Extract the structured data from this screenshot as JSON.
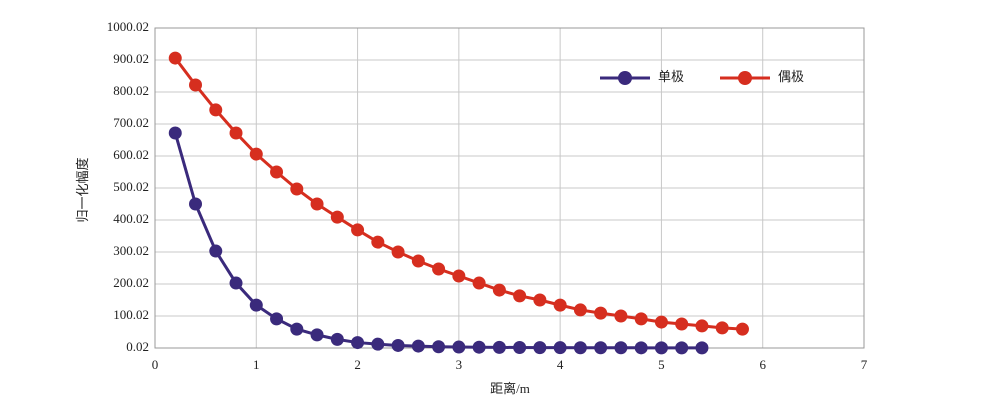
{
  "chart_data": {
    "type": "line",
    "x_label": "距离/m",
    "y_label": "归一化幅度",
    "xlim": [
      0,
      7
    ],
    "xticks": [
      0,
      1,
      2,
      3,
      4,
      5,
      6,
      7
    ],
    "ylim": [
      0.02,
      1000.02
    ],
    "yticks": [
      0.02,
      100.02,
      200.02,
      300.02,
      400.02,
      500.02,
      600.02,
      700.02,
      800.02,
      900.02,
      1000.02
    ],
    "grid": true,
    "legend": "upper right",
    "series": [
      {
        "name": "单极",
        "color": "#3a2a7c",
        "x": [
          0.2,
          0.4,
          0.6,
          0.8,
          1.0,
          1.2,
          1.4,
          1.6,
          1.8,
          2.0,
          2.2,
          2.4,
          2.6,
          2.8,
          3.0,
          3.2,
          3.4,
          3.6,
          3.8,
          4.0,
          4.2,
          4.4,
          4.6,
          4.8,
          5.0,
          5.2,
          5.4
        ],
        "values": [
          672,
          450,
          303,
          203,
          134,
          91,
          59,
          41,
          27,
          17,
          12,
          8,
          6,
          4,
          3,
          2.5,
          2,
          1.5,
          1.2,
          1,
          0.9,
          0.8,
          0.7,
          0.6,
          0.5,
          0.5,
          0.4
        ]
      },
      {
        "name": "偶极",
        "color": "#d62e1f",
        "x": [
          0.2,
          0.4,
          0.6,
          0.8,
          1.0,
          1.2,
          1.4,
          1.6,
          1.8,
          2.0,
          2.2,
          2.4,
          2.6,
          2.8,
          3.0,
          3.2,
          3.4,
          3.6,
          3.8,
          4.0,
          4.2,
          4.4,
          4.6,
          4.8,
          5.0,
          5.2,
          5.4,
          5.6,
          5.8
        ],
        "values": [
          906,
          822,
          744,
          672,
          606,
          550,
          497,
          450,
          409,
          369,
          331,
          300,
          272,
          247,
          225,
          203,
          181,
          163,
          150,
          134,
          119,
          109,
          100,
          91,
          81,
          75,
          69,
          63,
          59
        ]
      }
    ]
  }
}
